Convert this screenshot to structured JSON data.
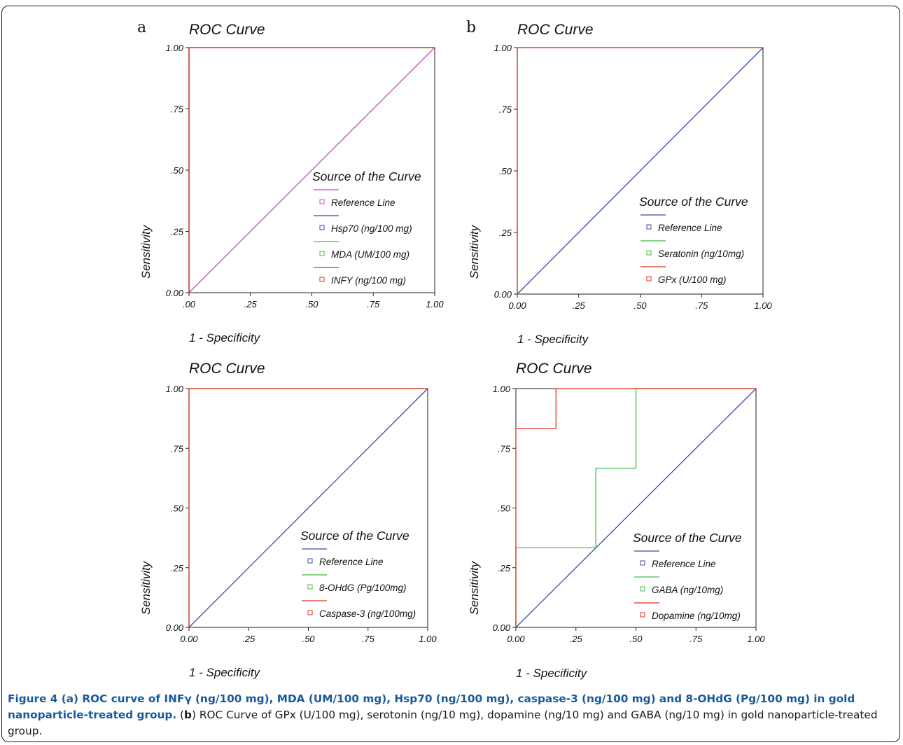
{
  "chart_data": [
    {
      "type": "line",
      "panel_label": "a",
      "title": "ROC Curve",
      "xlabel": "1 - Specificity",
      "ylabel": "Sensitivity",
      "xlim": [
        0,
        1
      ],
      "ylim": [
        0,
        1
      ],
      "x_ticks": [
        ".00",
        ".25",
        ".50",
        ".75",
        "1.00"
      ],
      "y_ticks": [
        "0.00",
        ".25",
        ".50",
        ".75",
        "1.00"
      ],
      "legend_title": "Source of the Curve",
      "legend_placement": "lower-right",
      "series": [
        {
          "name": "Reference Line",
          "color": "#cc44cc",
          "x": [
            0,
            1
          ],
          "y": [
            0,
            1
          ]
        },
        {
          "name": "Hsp70 (ng/100 mg)",
          "color": "#3a4aa0",
          "x": [
            0,
            0,
            1
          ],
          "y": [
            0,
            1,
            1
          ]
        },
        {
          "name": "MDA (UM/100 mg)",
          "color": "#44bb44",
          "x": [
            0,
            0,
            1
          ],
          "y": [
            0,
            1,
            1
          ]
        },
        {
          "name": "INFY (ng/100 mg)",
          "color": "#dd3322",
          "x": [
            0,
            0,
            1
          ],
          "y": [
            0,
            1,
            1
          ]
        }
      ]
    },
    {
      "type": "line",
      "panel_label": "b",
      "title": "ROC Curve",
      "xlabel": "1 - Specificity",
      "ylabel": "Sensitivity",
      "xlim": [
        0,
        1
      ],
      "ylim": [
        0,
        1
      ],
      "x_ticks": [
        "0.00",
        ".25",
        ".50",
        ".75",
        "1.00"
      ],
      "y_ticks": [
        "0.00",
        ".25",
        ".50",
        ".75",
        "1.00"
      ],
      "legend_title": "Source of the Curve",
      "legend_placement": "lower-right",
      "series": [
        {
          "name": "Reference Line",
          "color": "#3a4aa0",
          "x": [
            0,
            1
          ],
          "y": [
            0,
            1
          ]
        },
        {
          "name": "Seratonin (ng/10mg)",
          "color": "#44bb44",
          "x": [
            0,
            0,
            1
          ],
          "y": [
            0,
            1,
            1
          ]
        },
        {
          "name": "GPx (U/100 mg)",
          "color": "#dd3322",
          "x": [
            0,
            0,
            1
          ],
          "y": [
            0,
            1,
            1
          ]
        }
      ]
    },
    {
      "type": "line",
      "panel_label": "",
      "title": "ROC Curve",
      "xlabel": "1 - Specificity",
      "ylabel": "Sensitivity",
      "xlim": [
        0,
        1
      ],
      "ylim": [
        0,
        1
      ],
      "x_ticks": [
        "0.00",
        ".25",
        ".50",
        ".75",
        "1.00"
      ],
      "y_ticks": [
        "0.00",
        ".25",
        ".50",
        ".75",
        "1.00"
      ],
      "legend_title": "Source of the Curve",
      "legend_placement": "lower-right",
      "series": [
        {
          "name": "Reference Line",
          "color": "#3a4aa0",
          "x": [
            0,
            1
          ],
          "y": [
            0,
            1
          ]
        },
        {
          "name": "8-OHdG (Pg/100mg)",
          "color": "#44bb44",
          "x": [
            0,
            0,
            1
          ],
          "y": [
            0,
            1,
            1
          ]
        },
        {
          "name": "Caspase-3 (ng/100mg)",
          "color": "#dd3322",
          "x": [
            0,
            0,
            1
          ],
          "y": [
            0,
            1,
            1
          ]
        }
      ]
    },
    {
      "type": "line",
      "panel_label": "",
      "title": "ROC Curve",
      "xlabel": "1 - Specificity",
      "ylabel": "Sensitivity",
      "xlim": [
        0,
        1
      ],
      "ylim": [
        0,
        1
      ],
      "x_ticks": [
        "0.00",
        ".25",
        ".50",
        ".75",
        "1.00"
      ],
      "y_ticks": [
        "0.00",
        ".25",
        ".50",
        ".75",
        "1.00"
      ],
      "legend_title": "Source of the Curve",
      "legend_placement": "lower-right",
      "series": [
        {
          "name": "Reference Line",
          "color": "#3a4aa0",
          "x": [
            0,
            1
          ],
          "y": [
            0,
            1
          ]
        },
        {
          "name": "GABA (ng/10mg)",
          "color": "#44bb44",
          "x": [
            0,
            0,
            0.333,
            0.333,
            0.5,
            0.5,
            1
          ],
          "y": [
            0,
            0.333,
            0.333,
            0.667,
            0.667,
            1,
            1
          ]
        },
        {
          "name": "Dopamine (ng/10mg)",
          "color": "#dd3322",
          "x": [
            0,
            0,
            0.167,
            0.167,
            1
          ],
          "y": [
            0,
            0.833,
            0.833,
            1,
            1
          ]
        }
      ]
    }
  ],
  "caption": {
    "bold": "Figure 4 (a) ROC curve of INFγ (ng/100 mg), MDA (UM/100 mg), Hsp70 (ng/100 mg), caspase-3 (ng/100 mg) and 8-OHdG (Pg/100 mg) in gold nanoparticle-treated group.",
    "open_paren": " (",
    "b_letter": "b",
    "rest": ") ROC Curve of GPx (U/100 mg), serotonin (ng/10 mg), dopamine (ng/10 mg) and GABA (ng/10 mg) in gold nanoparticle-treated group."
  }
}
